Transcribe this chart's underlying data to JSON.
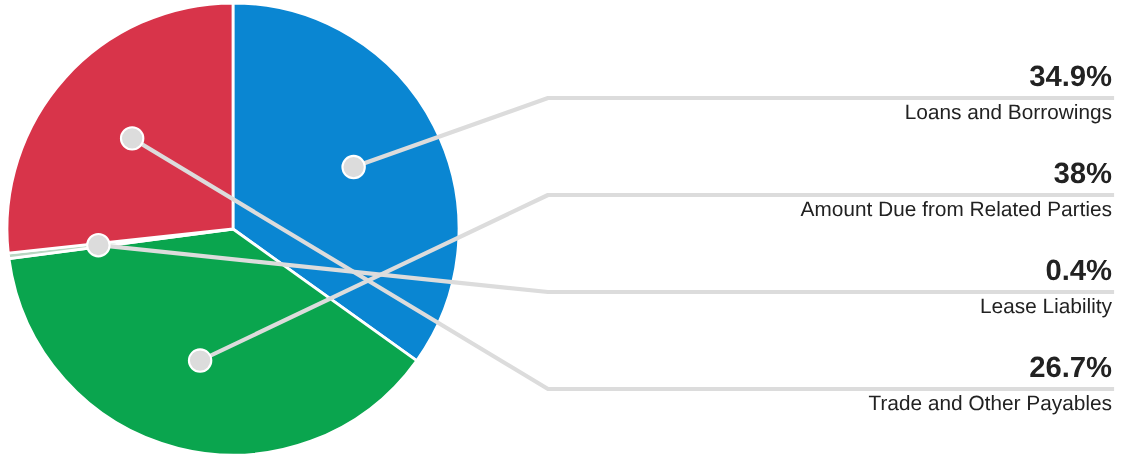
{
  "chart_data": {
    "type": "pie",
    "categories": [
      "Loans and Borrowings",
      "Amount Due from Related Parties",
      "Lease Liability",
      "Trade and Other Payables"
    ],
    "values": [
      34.9,
      38,
      0.4,
      26.7
    ],
    "value_labels": [
      "34.9%",
      "38%",
      "0.4%",
      "26.7%"
    ],
    "colors": [
      "#0a86d2",
      "#0aa54e",
      "#b9d6c2",
      "#d8344a"
    ]
  }
}
